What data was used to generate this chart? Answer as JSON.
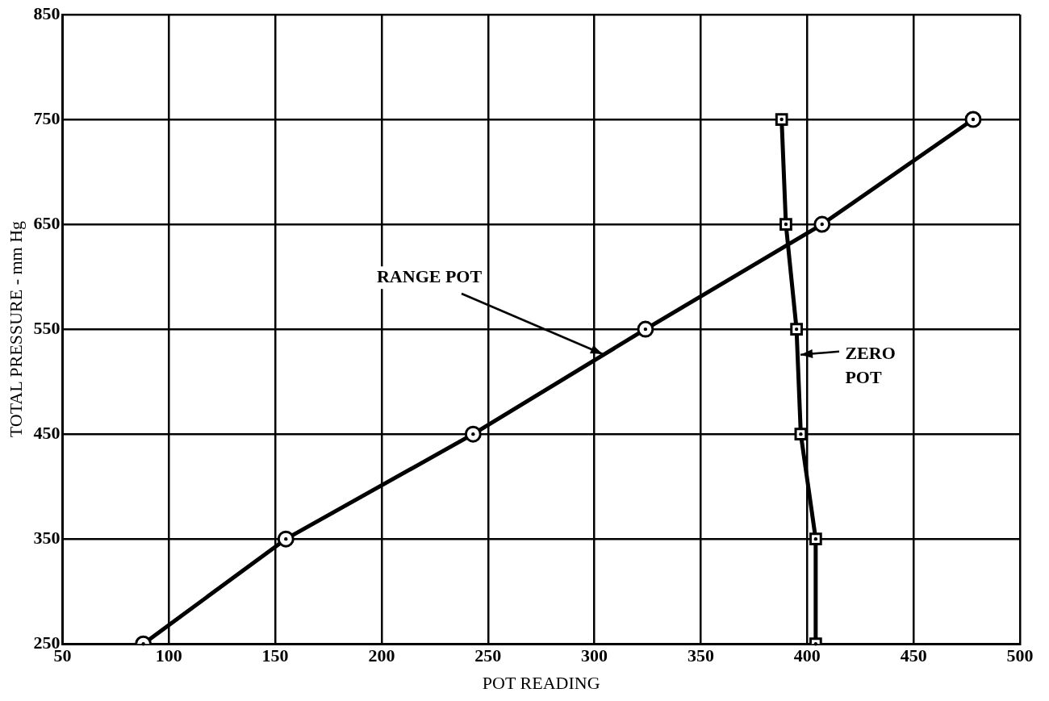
{
  "chart_data": {
    "type": "line",
    "xlabel": "POT READING",
    "ylabel": "TOTAL PRESSURE - mm Hg",
    "xlim": [
      50,
      500
    ],
    "xticks": [
      50,
      100,
      150,
      200,
      250,
      300,
      350,
      400,
      450,
      500
    ],
    "ylim": [
      250,
      850
    ],
    "yticks": [
      250,
      350,
      450,
      550,
      650,
      750,
      850
    ],
    "grid": true,
    "legend": false,
    "series": [
      {
        "x": [
          88,
          155,
          243,
          324,
          407,
          478
        ],
        "values": [
          250,
          350,
          450,
          550,
          650,
          750
        ],
        "color": "#000000",
        "marker": "circle"
      },
      {
        "x": [
          404,
          404,
          397,
          395,
          390,
          388
        ],
        "values": [
          250,
          350,
          450,
          550,
          650,
          750
        ],
        "color": "#000000",
        "marker": "square"
      }
    ],
    "annotations": [
      {
        "text": "RANGE POT",
        "x": 304,
        "y": 526
      },
      {
        "text": "ZERO POT",
        "x": 397,
        "y": 526
      }
    ]
  }
}
